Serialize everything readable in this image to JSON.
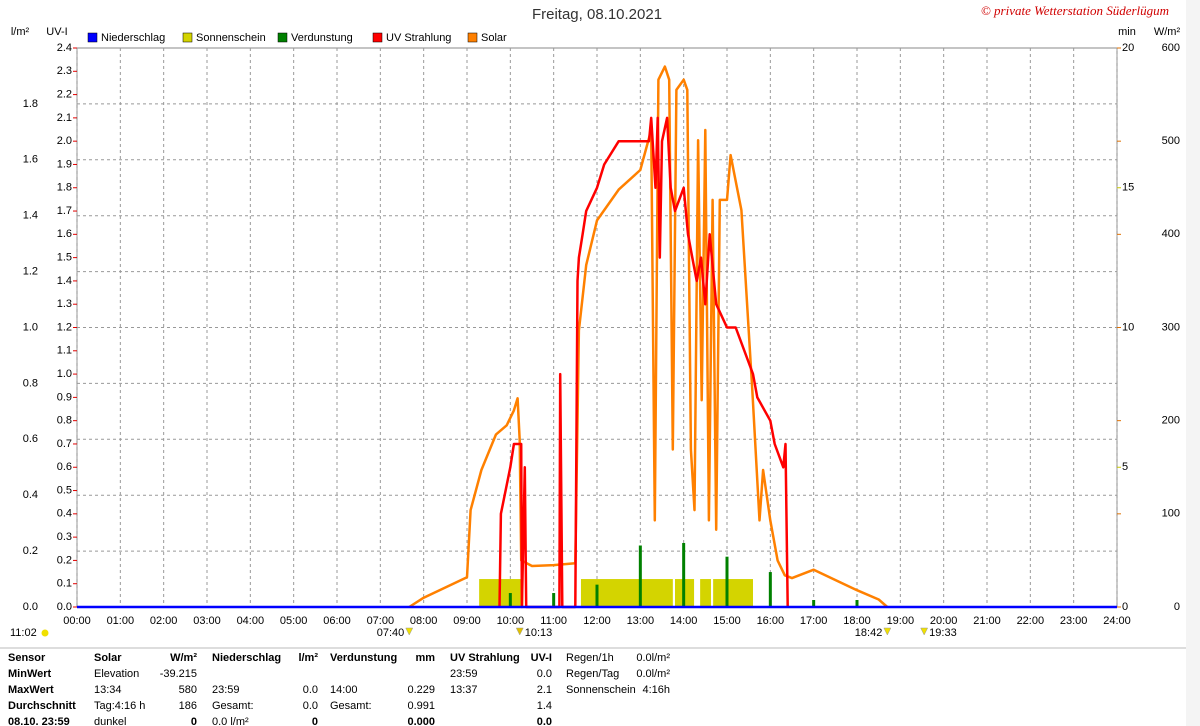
{
  "chart_data": {
    "type": "line",
    "title": "Freitag, 08.10.2021",
    "credit": "© private Wetterstation Süderlügum",
    "xlim": [
      0,
      24
    ],
    "xticks": [
      {
        "value": 0,
        "label": "00:00"
      },
      {
        "value": 1,
        "label": "01:00"
      },
      {
        "value": 2,
        "label": "02:00"
      },
      {
        "value": 3,
        "label": "03:00"
      },
      {
        "value": 4,
        "label": "04:00"
      },
      {
        "value": 5,
        "label": "05:00"
      },
      {
        "value": 6,
        "label": "06:00"
      },
      {
        "value": 7,
        "label": "07:00"
      },
      {
        "value": 8,
        "label": "08:00"
      },
      {
        "value": 9,
        "label": "09:00"
      },
      {
        "value": 10,
        "label": "10:00"
      },
      {
        "value": 11,
        "label": "11:00"
      },
      {
        "value": 12,
        "label": "12:00"
      },
      {
        "value": 13,
        "label": "13:00"
      },
      {
        "value": 14,
        "label": "14:00"
      },
      {
        "value": 15,
        "label": "15:00"
      },
      {
        "value": 16,
        "label": "16:00"
      },
      {
        "value": 17,
        "label": "17:00"
      },
      {
        "value": 18,
        "label": "18:00"
      },
      {
        "value": 19,
        "label": "19:00"
      },
      {
        "value": 20,
        "label": "20:00"
      },
      {
        "value": 21,
        "label": "21:00"
      },
      {
        "value": 22,
        "label": "22:00"
      },
      {
        "value": 23,
        "label": "23:00"
      },
      {
        "value": 24,
        "label": "24:00"
      }
    ],
    "grid": true,
    "axes": {
      "y": {
        "label": "l/m²",
        "color": "#0000c0",
        "lim": [
          0,
          2.0
        ],
        "ticks": [
          {
            "value": 0,
            "label": "0.0"
          },
          0.2,
          0.4,
          0.6,
          0.8,
          {
            "value": 1,
            "label": "1.0"
          },
          1.2,
          1.4,
          1.6,
          1.8
        ]
      },
      "y2": {
        "label": "UV-I",
        "color": "#e00000",
        "lim": [
          0,
          2.4
        ],
        "ticks": [
          {
            "value": 0,
            "label": "0.0"
          },
          0.1,
          0.2,
          0.3,
          0.4,
          0.5,
          0.6,
          0.7,
          0.8,
          0.9,
          {
            "value": 1,
            "label": "1.0"
          },
          1.1,
          1.2,
          1.3,
          1.4,
          1.5,
          1.6,
          1.7,
          1.8,
          1.9,
          {
            "value": 2,
            "label": "2.0"
          },
          2.1,
          2.2,
          2.3,
          2.4
        ]
      },
      "y3": {
        "label": "min",
        "color": "#c8c800",
        "lim": [
          0,
          20
        ],
        "ticks": [
          0,
          5,
          10,
          15,
          20
        ]
      },
      "y4": {
        "label": "W/m²",
        "color": "#e07000",
        "lim": [
          0,
          600
        ],
        "ticks": [
          0,
          100,
          200,
          300,
          400,
          500,
          600
        ]
      }
    },
    "series": [
      {
        "name": "Niederschlag",
        "color": "#0000ff",
        "kind": "line",
        "axis": "y",
        "x": [
          0,
          24
        ],
        "values": [
          0,
          0
        ]
      },
      {
        "name": "Sonnenschein",
        "color": "#d4d400",
        "kind": "span",
        "axis": "y3",
        "x_start": [
          9.28,
          11.63,
          13.8,
          14.38,
          14.68
        ],
        "x_end": [
          10.3,
          13.75,
          14.24,
          14.63,
          15.6
        ],
        "values": [
          1,
          1,
          1,
          1,
          1
        ]
      },
      {
        "name": "Verdunstung",
        "color": "#008000",
        "kind": "bar",
        "axis": "y",
        "x": [
          10,
          11,
          12,
          13,
          14,
          15,
          16,
          17,
          18
        ],
        "values": [
          0.05,
          0.05,
          0.08,
          0.22,
          0.229,
          0.18,
          0.125,
          0.025,
          0.025
        ]
      },
      {
        "name": "UV Strahlung",
        "color": "#ff0000",
        "kind": "line",
        "axis": "y2",
        "x": [
          9.75,
          9.783,
          10,
          10.083,
          10.25,
          10.267,
          10.333,
          10.367,
          11.133,
          11.15,
          11.2,
          11.5,
          11.55,
          11.583,
          11.667,
          11.75,
          12,
          12.167,
          12.5,
          13.2,
          13.25,
          13.35,
          13.4,
          13.45,
          13.5,
          13.617,
          13.7,
          13.8,
          14,
          14.1,
          14.2,
          14.3,
          14.4,
          14.5,
          14.6,
          14.75,
          15,
          15.2,
          15.6,
          15.7,
          16,
          16.1,
          16.3,
          16.35,
          16.4
        ],
        "values": [
          0,
          0.4,
          0.6,
          0.7,
          0.7,
          0,
          0.6,
          0,
          0,
          1.0,
          0,
          0,
          1.4,
          1.5,
          1.6,
          1.7,
          1.8,
          1.9,
          2.0,
          2.0,
          2.1,
          1.8,
          2.1,
          1.5,
          2.0,
          2.1,
          1.8,
          1.7,
          1.8,
          1.6,
          1.5,
          1.4,
          1.5,
          1.3,
          1.6,
          1.3,
          1.2,
          1.2,
          1.0,
          0.9,
          0.8,
          0.7,
          0.6,
          0.7,
          0
        ]
      },
      {
        "name": "Solar",
        "color": "#ff8000",
        "kind": "line",
        "axis": "y4",
        "x": [
          7.667,
          8,
          9,
          9.083,
          9.333,
          9.667,
          9.917,
          10.083,
          10.167,
          10.217,
          10.25,
          10.5,
          11,
          11.5,
          11.583,
          11.75,
          12,
          12.5,
          13,
          13.25,
          13.333,
          13.417,
          13.567,
          13.667,
          13.75,
          13.833,
          14,
          14.083,
          14.167,
          14.25,
          14.333,
          14.417,
          14.5,
          14.583,
          14.667,
          14.75,
          14.833,
          15,
          15.083,
          15.333,
          15.583,
          15.75,
          15.833,
          16,
          16.167,
          16.333,
          16.5,
          17,
          17.5,
          18,
          18.5,
          18.7
        ],
        "values": [
          0,
          10,
          32,
          104,
          147,
          185,
          195,
          211,
          224,
          179,
          50,
          44,
          45,
          47,
          297,
          367,
          415,
          448,
          469,
          512,
          93,
          566,
          580,
          566,
          169,
          555,
          566,
          555,
          169,
          104,
          501,
          222,
          512,
          93,
          437,
          83,
          437,
          437,
          485,
          426,
          233,
          93,
          147,
          93,
          50,
          34,
          31,
          40,
          29,
          18,
          8,
          0
        ]
      }
    ],
    "day_length": "11:02",
    "markers": [
      {
        "x": 7.667,
        "label": "07:40"
      },
      {
        "x": 10.217,
        "label": "10:13"
      },
      {
        "x": 18.7,
        "label": "18:42"
      },
      {
        "x": 19.55,
        "label": "19:33"
      }
    ]
  },
  "table": {
    "header": [
      "Sensor",
      "Solar",
      "W/m²",
      "Niederschlag",
      "l/m²",
      "Verdunstung",
      "mm",
      "UV Strahlung",
      "UV-I",
      "Regen/1h",
      "0.0l/m²"
    ],
    "rows": [
      [
        "MinWert",
        "Elevation",
        "-39.215",
        null,
        null,
        null,
        null,
        "23:59",
        "0.0",
        "Regen/Tag",
        "0.0l/m²"
      ],
      [
        "MaxWert",
        "13:34",
        "580",
        "23:59",
        "0.0",
        "14:00",
        "0.229",
        "13:37",
        "2.1",
        "Sonnenschein",
        "4:16h"
      ],
      [
        "Durchschnitt",
        "Tag:4:16 h",
        "186",
        "Gesamt:",
        "0.0",
        "Gesamt:",
        "0.991",
        null,
        "1.4",
        null,
        null
      ],
      [
        "08.10. 23:59",
        "dunkel",
        "0",
        "0.0 l/m²",
        "0",
        null,
        "0.000",
        null,
        "0.0",
        null,
        null
      ]
    ]
  }
}
